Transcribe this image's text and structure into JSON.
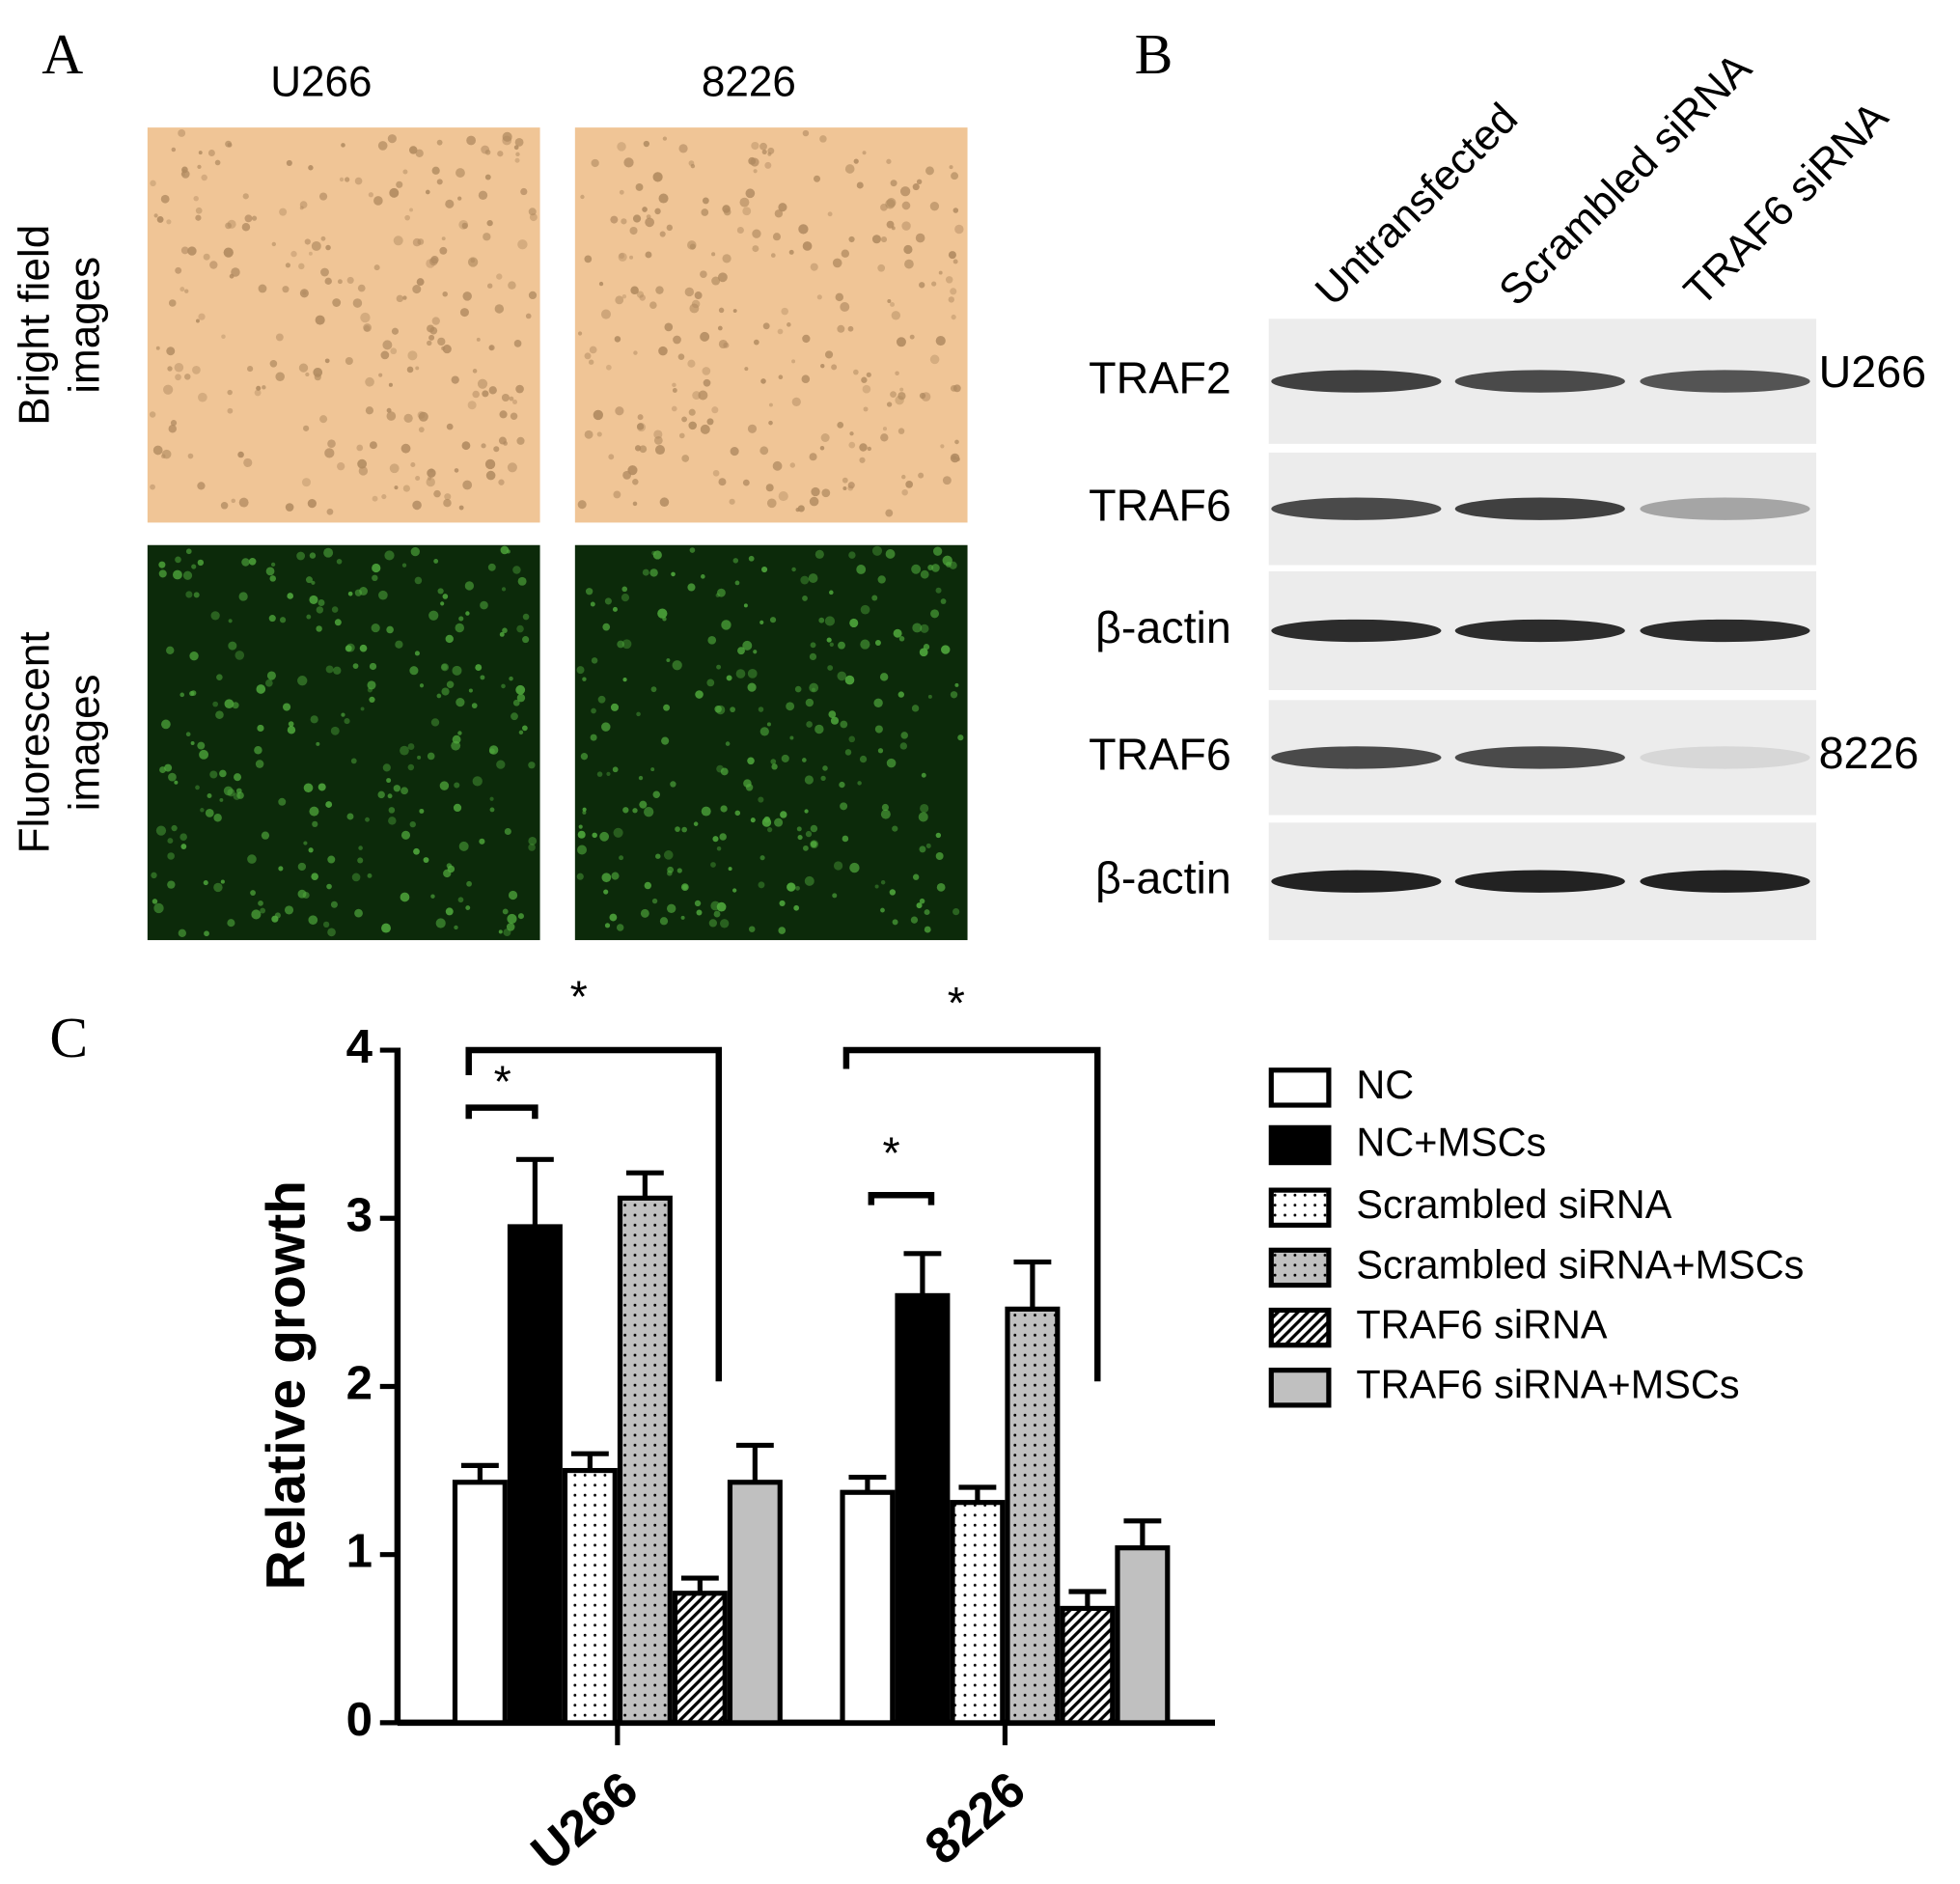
{
  "panel_a": {
    "label": "A",
    "columns": [
      "U266",
      "8226"
    ],
    "rows": [
      [
        "Bright field",
        "images"
      ],
      [
        "Fluorescent",
        "images"
      ]
    ]
  },
  "panel_b": {
    "label": "B",
    "lanes": [
      "Untransfected",
      "Scrambled siRNA",
      "TRAF6 siRNA"
    ],
    "rows": [
      "TRAF2",
      "TRAF6",
      "β-actin",
      "TRAF6",
      "β-actin"
    ],
    "cell_lines": [
      "U266",
      "8226"
    ]
  },
  "chart_data": {
    "panel_label": "C",
    "type": "bar",
    "ylabel": "Relative growth",
    "categories": [
      "U266",
      "8226"
    ],
    "series": [
      {
        "name": "NC",
        "color": "#ffffff",
        "values": [
          1.43,
          1.37
        ],
        "errors": [
          0.1,
          0.09
        ]
      },
      {
        "name": "NC+MSCs",
        "color": "#000000",
        "values": [
          2.95,
          2.54
        ],
        "errors": [
          0.4,
          0.25
        ]
      },
      {
        "name": "Scrambled siRNA",
        "color": "#ffffff",
        "pattern": "dots",
        "values": [
          1.5,
          1.31
        ],
        "errors": [
          0.1,
          0.09
        ]
      },
      {
        "name": "Scrambled siRNA+MSCs",
        "color": "#c0c0c0",
        "pattern": "dots",
        "values": [
          3.12,
          2.46
        ],
        "errors": [
          0.15,
          0.28
        ]
      },
      {
        "name": "TRAF6 siRNA",
        "color": "#ffffff",
        "pattern": "hatch",
        "values": [
          0.77,
          0.68
        ],
        "errors": [
          0.09,
          0.1
        ]
      },
      {
        "name": "TRAF6 siRNA+MSCs",
        "color": "#c0c0c0",
        "values": [
          1.43,
          1.04
        ],
        "errors": [
          0.22,
          0.16
        ]
      }
    ],
    "ylim": [
      0,
      4
    ],
    "yticks": [
      0,
      1,
      2,
      3,
      4
    ],
    "annotations": [
      "*",
      "*",
      "*",
      "*"
    ]
  }
}
